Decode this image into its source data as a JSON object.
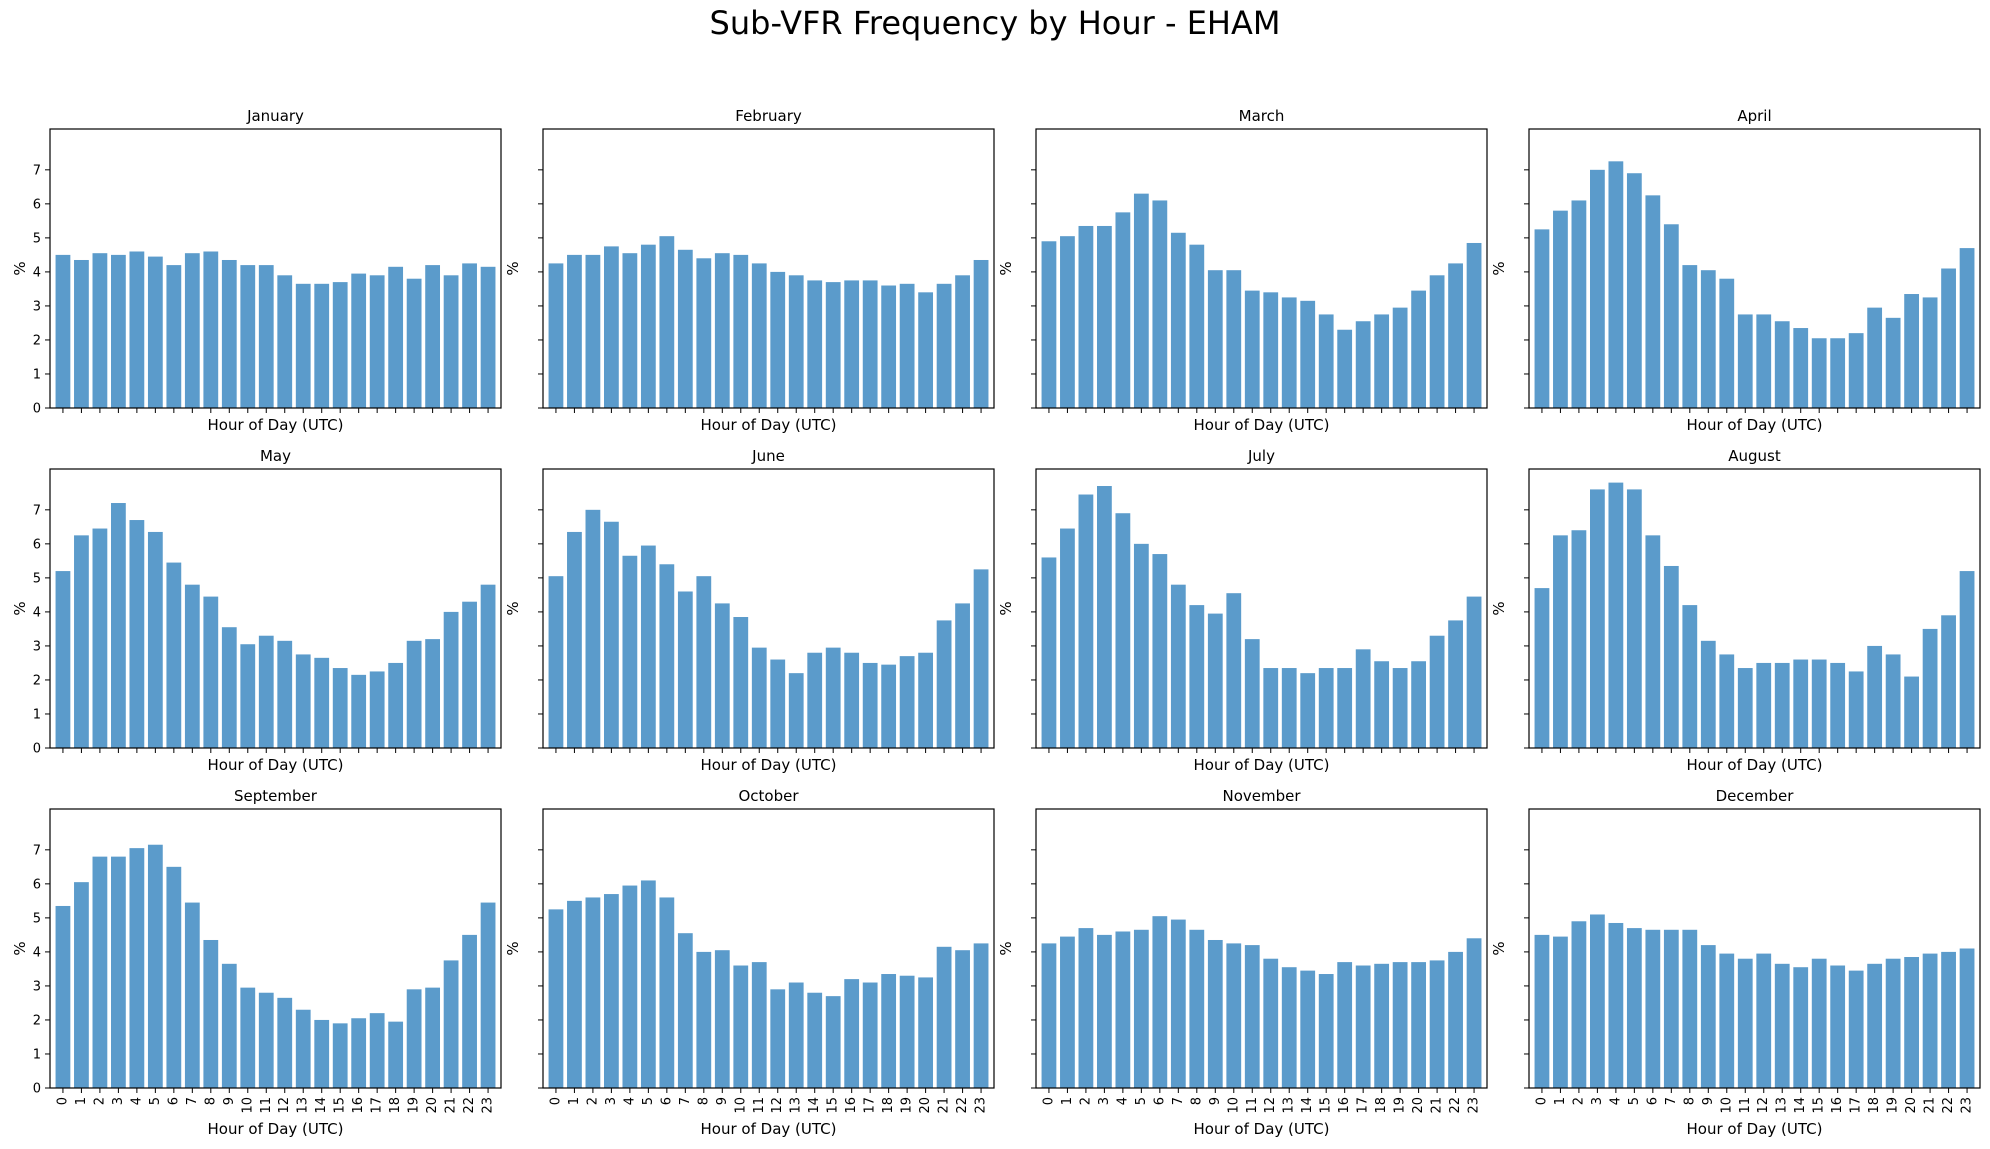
{
  "figure_title": "Sub-VFR Frequency by Hour - EHAM",
  "chart_data": {
    "type": "bar",
    "layout": "3x4 grid of subplots, shared axes",
    "bar_color": "#5b9bcb",
    "xlabel": "Hour of Day (UTC)",
    "ylabel": "%",
    "categories": [
      "0",
      "1",
      "2",
      "3",
      "4",
      "5",
      "6",
      "7",
      "8",
      "9",
      "10",
      "11",
      "12",
      "13",
      "14",
      "15",
      "16",
      "17",
      "18",
      "19",
      "20",
      "21",
      "22",
      "23"
    ],
    "ylim": [
      0,
      8.2
    ],
    "yticks": [
      "0",
      "1",
      "2",
      "3",
      "4",
      "5",
      "6",
      "7"
    ],
    "grid": false,
    "legend": "none",
    "panels": [
      {
        "title": "January",
        "values": [
          4.5,
          4.35,
          4.55,
          4.5,
          4.6,
          4.45,
          4.2,
          4.55,
          4.6,
          4.35,
          4.2,
          4.2,
          3.9,
          3.65,
          3.65,
          3.7,
          3.95,
          3.9,
          4.15,
          3.8,
          4.2,
          3.9,
          4.25,
          4.15
        ]
      },
      {
        "title": "February",
        "values": [
          4.25,
          4.5,
          4.5,
          4.75,
          4.55,
          4.8,
          5.05,
          4.65,
          4.4,
          4.55,
          4.5,
          4.25,
          4.0,
          3.9,
          3.75,
          3.7,
          3.75,
          3.75,
          3.6,
          3.65,
          3.4,
          3.65,
          3.9,
          4.35
        ]
      },
      {
        "title": "March",
        "values": [
          4.9,
          5.05,
          5.35,
          5.35,
          5.75,
          6.3,
          6.1,
          5.15,
          4.8,
          4.05,
          4.05,
          3.45,
          3.4,
          3.25,
          3.15,
          2.75,
          2.3,
          2.55,
          2.75,
          2.95,
          3.45,
          3.9,
          4.25,
          4.85
        ]
      },
      {
        "title": "April",
        "values": [
          5.25,
          5.8,
          6.1,
          7.0,
          7.25,
          6.9,
          6.25,
          5.4,
          4.2,
          4.05,
          3.8,
          2.75,
          2.75,
          2.55,
          2.35,
          2.05,
          2.05,
          2.2,
          2.95,
          2.65,
          3.35,
          3.25,
          4.1,
          4.7
        ]
      },
      {
        "title": "May",
        "values": [
          5.2,
          6.25,
          6.45,
          7.2,
          6.7,
          6.35,
          5.45,
          4.8,
          4.45,
          3.55,
          3.05,
          3.3,
          3.15,
          2.75,
          2.65,
          2.35,
          2.15,
          2.25,
          2.5,
          3.15,
          3.2,
          4.0,
          4.3,
          4.8
        ]
      },
      {
        "title": "June",
        "values": [
          5.05,
          6.35,
          7.0,
          6.65,
          5.65,
          5.95,
          5.4,
          4.6,
          5.05,
          4.25,
          3.85,
          2.95,
          2.6,
          2.2,
          2.8,
          2.95,
          2.8,
          2.5,
          2.45,
          2.7,
          2.8,
          3.75,
          4.25,
          5.25
        ]
      },
      {
        "title": "July",
        "values": [
          5.6,
          6.45,
          7.45,
          7.7,
          6.9,
          6.0,
          5.7,
          4.8,
          4.2,
          3.95,
          4.55,
          3.2,
          2.35,
          2.35,
          2.2,
          2.35,
          2.35,
          2.9,
          2.55,
          2.35,
          2.55,
          3.3,
          3.75,
          4.45
        ]
      },
      {
        "title": "August",
        "values": [
          4.7,
          6.25,
          6.4,
          7.6,
          7.8,
          7.6,
          6.25,
          5.35,
          4.2,
          3.15,
          2.75,
          2.35,
          2.5,
          2.5,
          2.6,
          2.6,
          2.5,
          2.25,
          3.0,
          2.75,
          2.1,
          3.5,
          3.9,
          5.2
        ]
      },
      {
        "title": "September",
        "values": [
          5.35,
          6.05,
          6.8,
          6.8,
          7.05,
          7.15,
          6.5,
          5.45,
          4.35,
          3.65,
          2.95,
          2.8,
          2.65,
          2.3,
          2.0,
          1.9,
          2.05,
          2.2,
          1.95,
          2.9,
          2.95,
          3.75,
          4.5,
          5.45
        ]
      },
      {
        "title": "October",
        "values": [
          5.25,
          5.5,
          5.6,
          5.7,
          5.95,
          6.1,
          5.6,
          4.55,
          4.0,
          4.05,
          3.6,
          3.7,
          2.9,
          3.1,
          2.8,
          2.7,
          3.2,
          3.1,
          3.35,
          3.3,
          3.25,
          4.15,
          4.05,
          4.25
        ]
      },
      {
        "title": "November",
        "values": [
          4.25,
          4.45,
          4.7,
          4.5,
          4.6,
          4.65,
          5.05,
          4.95,
          4.65,
          4.35,
          4.25,
          4.2,
          3.8,
          3.55,
          3.45,
          3.35,
          3.7,
          3.6,
          3.65,
          3.7,
          3.7,
          3.75,
          4.0,
          4.4
        ]
      },
      {
        "title": "December",
        "values": [
          4.5,
          4.45,
          4.9,
          5.1,
          4.85,
          4.7,
          4.65,
          4.65,
          4.65,
          4.2,
          3.95,
          3.8,
          3.95,
          3.65,
          3.55,
          3.8,
          3.6,
          3.45,
          3.65,
          3.8,
          3.85,
          3.95,
          4.0,
          4.1
        ]
      }
    ]
  }
}
